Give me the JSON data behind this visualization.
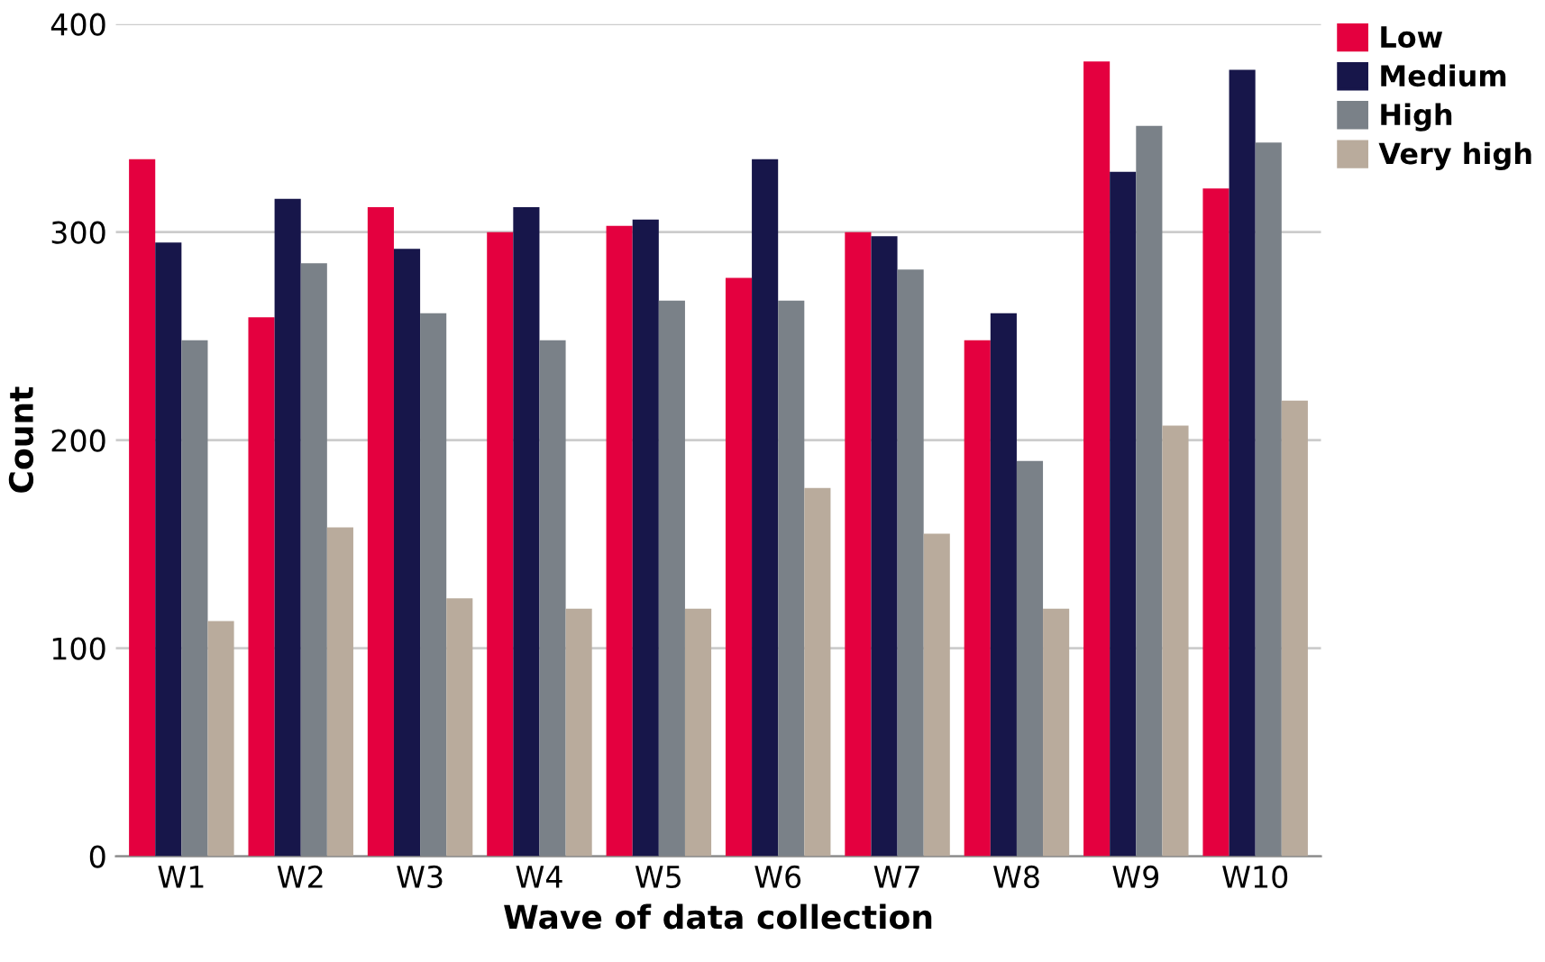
{
  "chart_data": {
    "type": "bar",
    "xlabel": "Wave of data collection",
    "ylabel": "Count",
    "categories": [
      "W1",
      "W2",
      "W3",
      "W4",
      "W5",
      "W6",
      "W7",
      "W8",
      "W9",
      "W10"
    ],
    "series": [
      {
        "name": "Low",
        "color": "#e4003f",
        "values": [
          335,
          259,
          312,
          300,
          303,
          278,
          300,
          248,
          382,
          321
        ]
      },
      {
        "name": "Medium",
        "color": "#17164a",
        "values": [
          295,
          316,
          292,
          312,
          306,
          335,
          298,
          261,
          329,
          378
        ]
      },
      {
        "name": "High",
        "color": "#7a8188",
        "values": [
          248,
          285,
          261,
          248,
          267,
          267,
          282,
          190,
          351,
          343
        ]
      },
      {
        "name": "Very high",
        "color": "#b9ab9c",
        "values": [
          113,
          158,
          124,
          119,
          119,
          177,
          155,
          119,
          207,
          219
        ]
      }
    ],
    "ylim": [
      0,
      400
    ],
    "yticks": [
      0,
      100,
      200,
      300,
      400
    ],
    "grid": "y",
    "legend": "top right"
  }
}
